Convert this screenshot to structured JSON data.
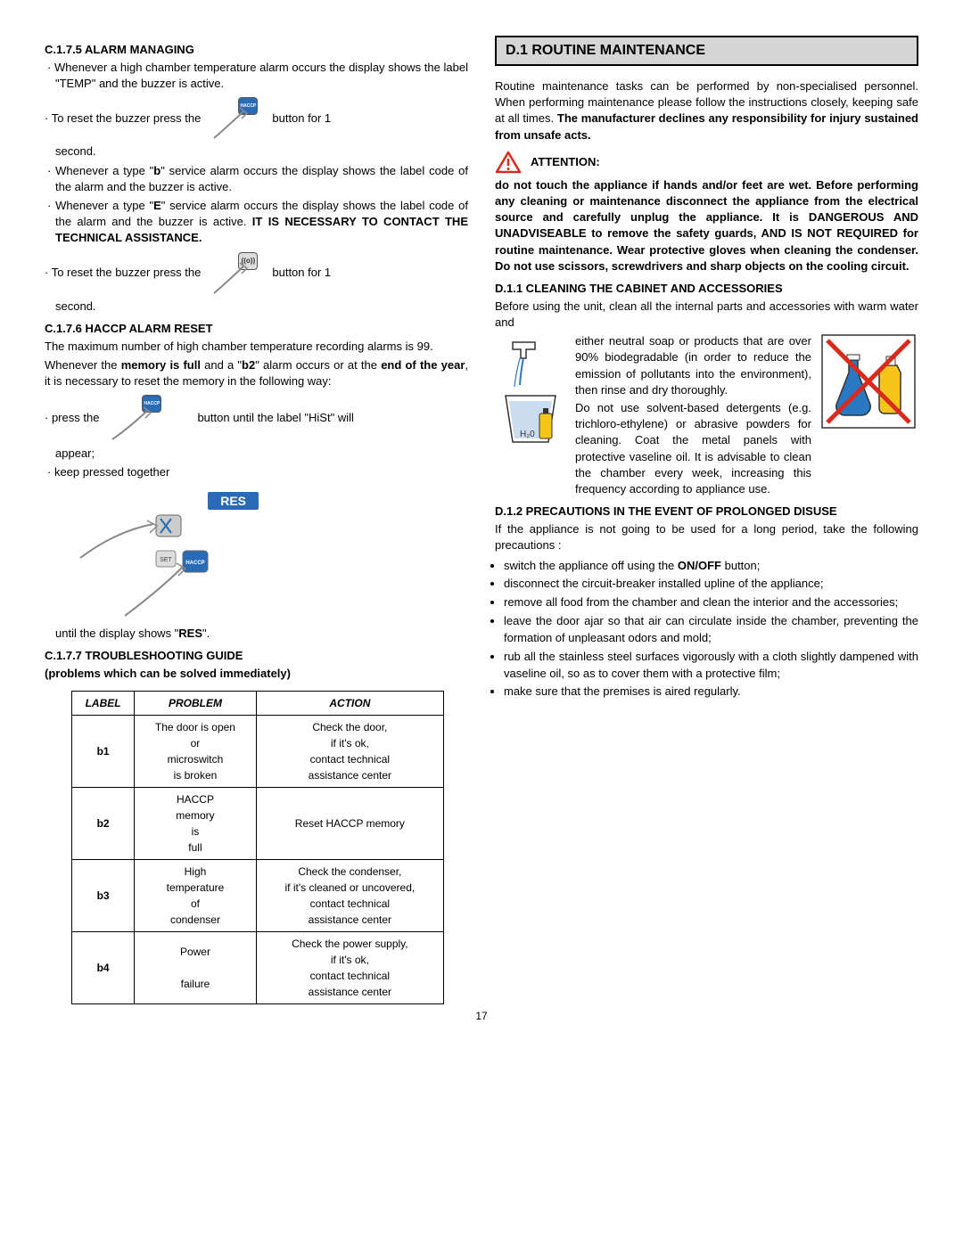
{
  "left": {
    "h_c175": "C.1.7.5 ALARM MANAGING",
    "p1_a": "Whenever a high chamber temperature alarm occurs the display shows the label \"TEMP\" and the buzzer is active.",
    "reset_a_lead": "To reset the buzzer press the",
    "reset_a_tail": "button for 1",
    "second": "second.",
    "p2": "Whenever a type \"",
    "p2_b": "b",
    "p2_rest": "\" service alarm occurs the display shows the label code of the alarm and the buzzer is active.",
    "p3_a": "Whenever a type \"",
    "p3_b": "E",
    "p3_rest": "\" service alarm occurs the display shows the label code of the alarm and the buzzer is active.  ",
    "p3_bold": "IT IS NECESSARY TO CONTACT THE TECHNICAL ASSISTANCE.",
    "reset_b_lead": "To reset the buzzer press the",
    "reset_b_tail": "button for 1",
    "h_c176": "C.1.7.6 HACCP ALARM RESET",
    "c176_p1": "The maximum number of high chamber temperature recording alarms is 99.",
    "c176_p2_a": "Whenever the ",
    "c176_p2_b": "memory is full",
    "c176_p2_c": " and a \"",
    "c176_p2_d": "b2",
    "c176_p2_e": "\" alarm occurs or at the ",
    "c176_p2_f": "end of the year",
    "c176_p2_g": ", it is necessary to reset the memory in the following way:",
    "press_lead": "press the",
    "press_tail": "button until the label \"HiSt\" will",
    "appear": "appear;",
    "keep_pressed": "keep pressed together",
    "res_badge": "RES",
    "until_res_a": "until the display shows \"",
    "until_res_b": "RES",
    "until_res_c": "\".",
    "h_c177": "C.1.7.7 TROUBLESHOOTING GUIDE",
    "c177_sub": "(problems which can be solved immediately)",
    "table": {
      "headers": [
        "LABEL",
        "PROBLEM",
        "ACTION"
      ],
      "rows": [
        {
          "label": "b1",
          "problem": "The door is open\nor\nmicroswitch\nis broken",
          "action": "Check the door,\nif it's ok,\ncontact technical\nassistance center"
        },
        {
          "label": "b2",
          "problem": "HACCP\nmemory\nis\nfull",
          "action": "Reset HACCP memory"
        },
        {
          "label": "b3",
          "problem": "High\ntemperature\nof\ncondenser",
          "action": "Check the condenser,\nif it's cleaned or uncovered,\ncontact technical\nassistance center"
        },
        {
          "label": "b4",
          "problem": "Power\n\nfailure",
          "action": "Check the power supply,\nif it's ok,\ncontact technical\nassistance center"
        }
      ]
    }
  },
  "right": {
    "header": "D.1 ROUTINE MAINTENANCE",
    "intro_a": "Routine maintenance tasks can be performed by non-specialised personnel.  When performing maintenance please follow the instructions closely, keeping safe at all times.  ",
    "intro_b": "The manufacturer declines any responsibility for injury sustained from unsafe acts.",
    "attention_label": "ATTENTION:",
    "attention_body": "do not touch the appliance if hands and/or feet are wet.  Before performing any cleaning or maintenance disconnect the appliance from the electrical source and carefully unplug the appliance.  It is DANGEROUS AND UNADVISEABLE to remove the safety guards, AND IS NOT REQUIRED for routine maintenance.  Wear protective gloves when cleaning the condenser.  Do not use scissors, screwdrivers and sharp objects on the cooling circuit.",
    "h_d11": "D.1.1 CLEANING THE CABINET AND ACCESSORIES",
    "d11_lead": "Before using the unit, clean all the internal parts and accessories with warm water and",
    "d11_mid": "either neutral soap or products that are over 90% biodegradable (in order to reduce the emission of pollutants into the environment), then rinse and dry thoroughly.",
    "d11_after": "Do not use solvent-based detergents (e.g. trichloro-ethylene) or abrasive powders for cleaning.  Coat the metal panels with protective vaseline oil.  It is advisable to clean the chamber every week, increasing this frequency according to appliance use.",
    "h_d12": "D.1.2 PRECAUTIONS IN THE EVENT OF PROLONGED DISUSE",
    "d12_lead": "If the appliance is not going to be used for a long period, take the following precautions :",
    "d12_items": [
      {
        "pre": "switch the appliance off using the ",
        "bold": "ON/OFF",
        "post": " button;"
      },
      {
        "pre": "disconnect the circuit-breaker installed upline of the appliance;",
        "bold": "",
        "post": ""
      },
      {
        "pre": "remove all food from the chamber and clean the interior and the accessories;",
        "bold": "",
        "post": ""
      },
      {
        "pre": "leave the door ajar so that air can circulate inside the chamber, preventing the formation of unpleasant odors and mold;",
        "bold": "",
        "post": ""
      },
      {
        "pre": "rub all the stainless steel surfaces vigorously with a cloth slightly dampened with vaseline oil, so as to cover them with a protective film;",
        "bold": "",
        "post": ""
      },
      {
        "pre": "make sure that the premises is aired regularly.",
        "bold": "",
        "post": ""
      }
    ]
  },
  "page_number": "17",
  "icons": {
    "haccp": "HACCP",
    "alarm": "((o))"
  },
  "colors": {
    "blue": "#2a6bb8",
    "header_bg": "#d5d5d5",
    "warn_red": "#d92a1c",
    "warn_yellow": "#f5c518",
    "warn_blue": "#2a78c4"
  }
}
